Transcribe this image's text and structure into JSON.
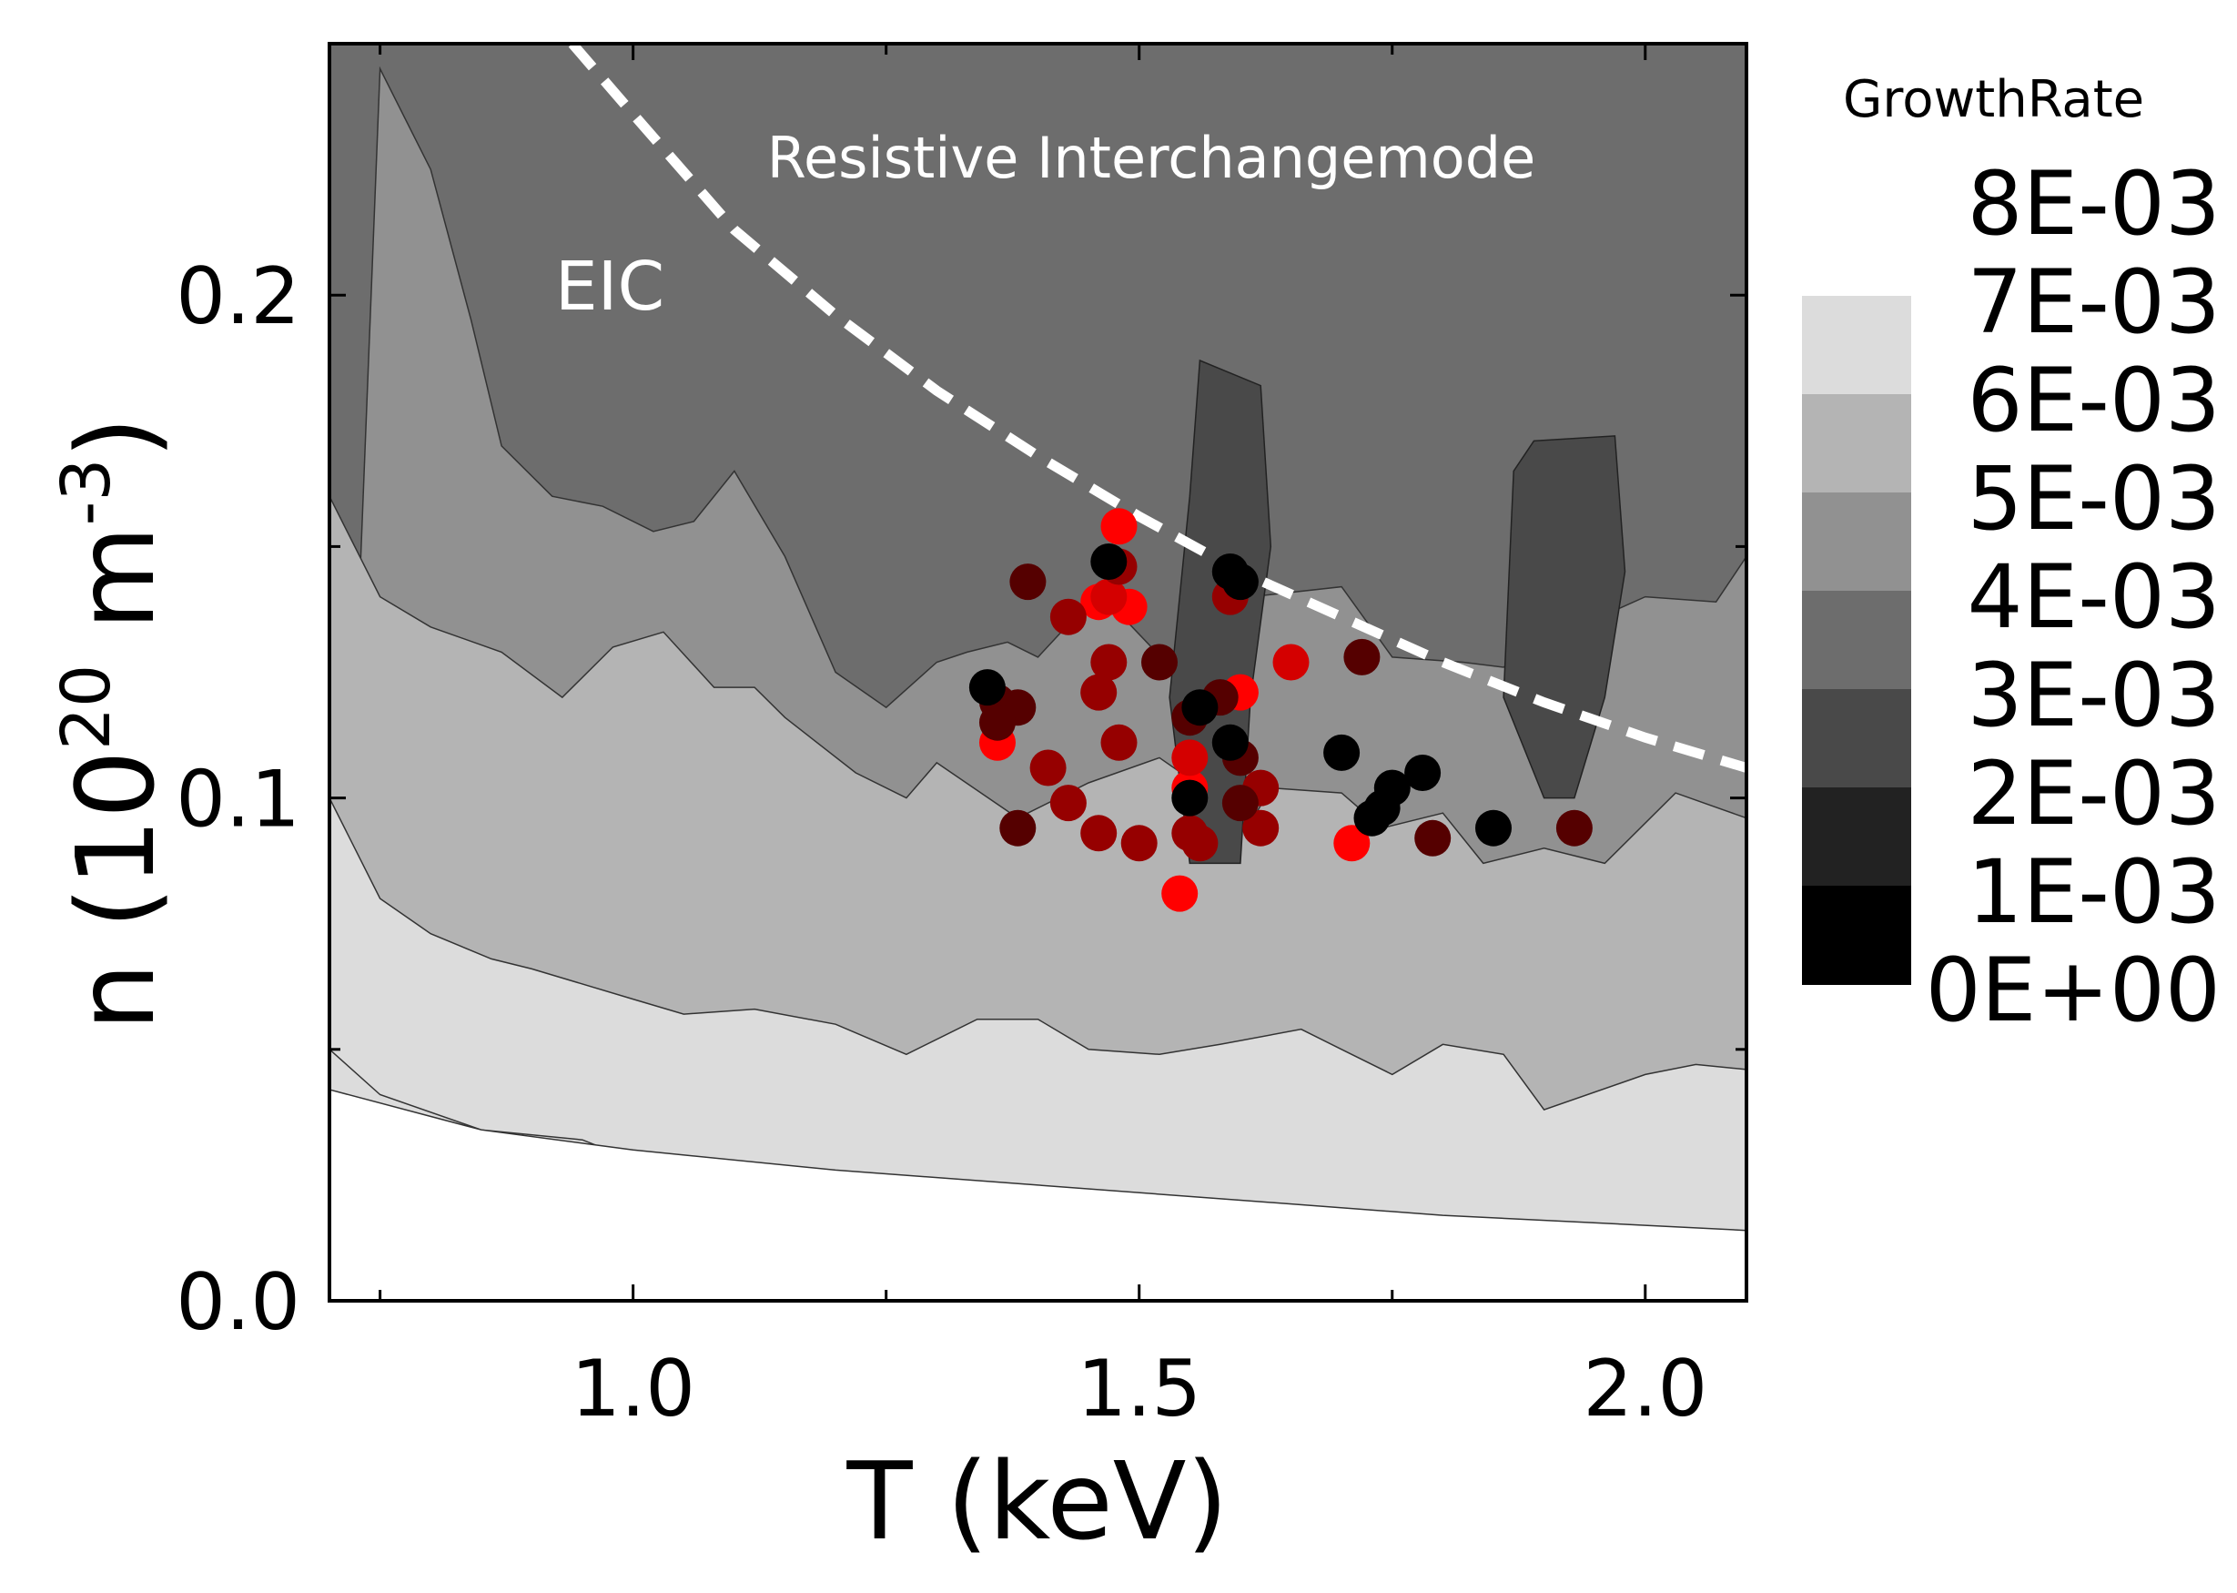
{
  "chart_data": {
    "type": "scatter",
    "xlabel": "T (keV)",
    "ylabel_parts": {
      "prefix": "n (10",
      "exp1": "20",
      "mid": " m",
      "exp2": "-3",
      "suffix": ")"
    },
    "xlim": [
      0.7,
      2.1
    ],
    "ylim": [
      0.0,
      0.25
    ],
    "x_ticks": [
      1.0,
      1.5,
      2.0
    ],
    "x_tick_labels": [
      "1.0",
      "1.5",
      "2.0"
    ],
    "x_minor_ticks": [
      0.75,
      1.25,
      1.75
    ],
    "y_ticks": [
      0.0,
      0.1,
      0.2
    ],
    "y_tick_labels": [
      "0.0",
      "0.1",
      "0.2"
    ],
    "y_minor_ticks": [
      0.05,
      0.15
    ],
    "grid": false,
    "annotations": {
      "eic": "EIC",
      "resistive": "Resistive Interchangemode"
    },
    "legend": {
      "title": "GrowthRate",
      "placement": "right",
      "levels": [
        "8E-03",
        "7E-03",
        "6E-03",
        "5E-03",
        "4E-03",
        "3E-03",
        "2E-03",
        "1E-03",
        "0E+00"
      ],
      "colors": [
        "#dcdcdc",
        "#b4b4b4",
        "#919191",
        "#6d6d6d",
        "#494949",
        "#222222",
        "#000000"
      ]
    },
    "contour_colors": {
      "white": "#ffffff",
      "band_0": "#dcdcdc",
      "band_1": "#b4b4b4",
      "band_2": "#919191",
      "band_3": "#6d6d6d",
      "band_4": "#494949"
    },
    "contours": {
      "boundary_white": [
        [
          0.7,
          0.042
        ],
        [
          0.85,
          0.034
        ],
        [
          1.0,
          0.03
        ],
        [
          1.2,
          0.026
        ],
        [
          1.4,
          0.023
        ],
        [
          1.6,
          0.02
        ],
        [
          1.8,
          0.017
        ],
        [
          2.0,
          0.015
        ],
        [
          2.1,
          0.014
        ]
      ],
      "boundary_0": [
        [
          0.7,
          0.05
        ],
        [
          0.75,
          0.041
        ],
        [
          0.85,
          0.034
        ],
        [
          0.95,
          0.032
        ],
        [
          1.0,
          0.028
        ],
        [
          1.05,
          0.028
        ],
        [
          1.15,
          0.023
        ],
        [
          1.25,
          0.022
        ],
        [
          1.3,
          0.02
        ],
        [
          1.4,
          0.017
        ],
        [
          1.5,
          0.017
        ],
        [
          1.55,
          0.009
        ],
        [
          1.6,
          0.003
        ],
        [
          1.75,
          0.004
        ],
        [
          1.82,
          0.001
        ],
        [
          1.88,
          0.002
        ],
        [
          1.97,
          0.001
        ],
        [
          2.05,
          0.006
        ],
        [
          2.1,
          0.005
        ]
      ],
      "boundary_1": [
        [
          0.7,
          0.1
        ],
        [
          0.75,
          0.08
        ],
        [
          0.8,
          0.073
        ],
        [
          0.86,
          0.068
        ],
        [
          0.9,
          0.066
        ],
        [
          1.0,
          0.06
        ],
        [
          1.05,
          0.057
        ],
        [
          1.12,
          0.058
        ],
        [
          1.2,
          0.055
        ],
        [
          1.27,
          0.049
        ],
        [
          1.34,
          0.056
        ],
        [
          1.4,
          0.056
        ],
        [
          1.45,
          0.05
        ],
        [
          1.52,
          0.049
        ],
        [
          1.58,
          0.051
        ],
        [
          1.66,
          0.054
        ],
        [
          1.7,
          0.05
        ],
        [
          1.75,
          0.045
        ],
        [
          1.8,
          0.051
        ],
        [
          1.86,
          0.049
        ],
        [
          1.9,
          0.038
        ],
        [
          2.0,
          0.045
        ],
        [
          2.05,
          0.047
        ],
        [
          2.1,
          0.046
        ]
      ],
      "boundary_2": [
        [
          0.7,
          0.16
        ],
        [
          0.75,
          0.14
        ],
        [
          0.8,
          0.134
        ],
        [
          0.87,
          0.129
        ],
        [
          0.93,
          0.12
        ],
        [
          0.98,
          0.13
        ],
        [
          1.03,
          0.133
        ],
        [
          1.08,
          0.122
        ],
        [
          1.12,
          0.122
        ],
        [
          1.15,
          0.116
        ],
        [
          1.22,
          0.105
        ],
        [
          1.27,
          0.1
        ],
        [
          1.3,
          0.107
        ],
        [
          1.38,
          0.096
        ],
        [
          1.45,
          0.103
        ],
        [
          1.52,
          0.108
        ],
        [
          1.57,
          0.101
        ],
        [
          1.61,
          0.095
        ],
        [
          1.63,
          0.102
        ],
        [
          1.7,
          0.101
        ],
        [
          1.74,
          0.094
        ],
        [
          1.8,
          0.097
        ],
        [
          1.84,
          0.087
        ],
        [
          1.9,
          0.09
        ],
        [
          1.96,
          0.087
        ],
        [
          2.03,
          0.101
        ],
        [
          2.1,
          0.096
        ]
      ],
      "boundary_3": [
        [
          0.75,
          0.245
        ],
        [
          0.8,
          0.225
        ],
        [
          0.84,
          0.195
        ],
        [
          0.87,
          0.17
        ],
        [
          0.92,
          0.16
        ],
        [
          0.97,
          0.158
        ],
        [
          1.02,
          0.153
        ],
        [
          1.06,
          0.155
        ],
        [
          1.1,
          0.165
        ],
        [
          1.15,
          0.148
        ],
        [
          1.2,
          0.125
        ],
        [
          1.25,
          0.118
        ],
        [
          1.3,
          0.127
        ],
        [
          1.33,
          0.129
        ],
        [
          1.37,
          0.131
        ],
        [
          1.4,
          0.128
        ],
        [
          1.46,
          0.141
        ],
        [
          1.55,
          0.122
        ],
        [
          1.61,
          0.14
        ],
        [
          1.7,
          0.142
        ],
        [
          1.75,
          0.128
        ],
        [
          1.82,
          0.127
        ],
        [
          1.86,
          0.126
        ],
        [
          1.9,
          0.131
        ],
        [
          2.0,
          0.14
        ],
        [
          2.07,
          0.139
        ],
        [
          2.1,
          0.148
        ]
      ],
      "spike_left": [
        [
          1.55,
          0.087
        ],
        [
          1.53,
          0.12
        ],
        [
          1.55,
          0.16
        ],
        [
          1.56,
          0.187
        ],
        [
          1.62,
          0.182
        ],
        [
          1.63,
          0.15
        ],
        [
          1.61,
          0.12
        ],
        [
          1.6,
          0.087
        ]
      ],
      "spike_right": [
        [
          1.9,
          0.1
        ],
        [
          1.86,
          0.12
        ],
        [
          1.87,
          0.165
        ],
        [
          1.89,
          0.171
        ],
        [
          1.97,
          0.172
        ],
        [
          1.98,
          0.145
        ],
        [
          1.96,
          0.12
        ],
        [
          1.93,
          0.1
        ]
      ]
    },
    "series": [
      {
        "color": "#ff0000",
        "points": [
          [
            1.48,
            0.154
          ],
          [
            1.46,
            0.139
          ],
          [
            1.49,
            0.138
          ],
          [
            1.36,
            0.111
          ],
          [
            1.6,
            0.121
          ],
          [
            1.55,
            0.102
          ],
          [
            1.54,
            0.081
          ],
          [
            1.71,
            0.091
          ]
        ]
      },
      {
        "color": "#d40000",
        "points": [
          [
            1.47,
            0.14
          ],
          [
            1.55,
            0.108
          ],
          [
            1.65,
            0.127
          ]
        ]
      },
      {
        "color": "#960000",
        "points": [
          [
            1.43,
            0.136
          ],
          [
            1.47,
            0.127
          ],
          [
            1.48,
            0.146
          ],
          [
            1.46,
            0.121
          ],
          [
            1.48,
            0.111
          ],
          [
            1.41,
            0.106
          ],
          [
            1.43,
            0.099
          ],
          [
            1.46,
            0.093
          ],
          [
            1.5,
            0.091
          ],
          [
            1.55,
            0.093
          ],
          [
            1.56,
            0.091
          ],
          [
            1.62,
            0.094
          ],
          [
            1.62,
            0.102
          ],
          [
            1.59,
            0.14
          ]
        ]
      },
      {
        "color": "#550000",
        "points": [
          [
            1.39,
            0.143
          ],
          [
            1.52,
            0.127
          ],
          [
            1.58,
            0.12
          ],
          [
            1.55,
            0.116
          ],
          [
            1.6,
            0.108
          ],
          [
            1.6,
            0.099
          ],
          [
            1.36,
            0.119
          ],
          [
            1.38,
            0.118
          ],
          [
            1.36,
            0.115
          ],
          [
            1.38,
            0.094
          ],
          [
            1.72,
            0.128
          ],
          [
            1.79,
            0.092
          ],
          [
            1.93,
            0.094
          ]
        ]
      },
      {
        "color": "#000000",
        "points": [
          [
            1.35,
            0.122
          ],
          [
            1.59,
            0.145
          ],
          [
            1.6,
            0.143
          ],
          [
            1.56,
            0.118
          ],
          [
            1.59,
            0.111
          ],
          [
            1.55,
            0.1
          ],
          [
            1.7,
            0.109
          ],
          [
            1.75,
            0.102
          ],
          [
            1.74,
            0.098
          ],
          [
            1.73,
            0.096
          ],
          [
            1.78,
            0.105
          ],
          [
            1.85,
            0.094
          ],
          [
            1.47,
            0.147
          ]
        ]
      }
    ],
    "eic_boundary_curve": [
      [
        0.94,
        0.25
      ],
      [
        1.0,
        0.236
      ],
      [
        1.1,
        0.213
      ],
      [
        1.2,
        0.196
      ],
      [
        1.3,
        0.181
      ],
      [
        1.4,
        0.168
      ],
      [
        1.5,
        0.156
      ],
      [
        1.6,
        0.145
      ],
      [
        1.7,
        0.136
      ],
      [
        1.8,
        0.127
      ],
      [
        1.9,
        0.119
      ],
      [
        2.0,
        0.112
      ],
      [
        2.1,
        0.106
      ]
    ]
  }
}
